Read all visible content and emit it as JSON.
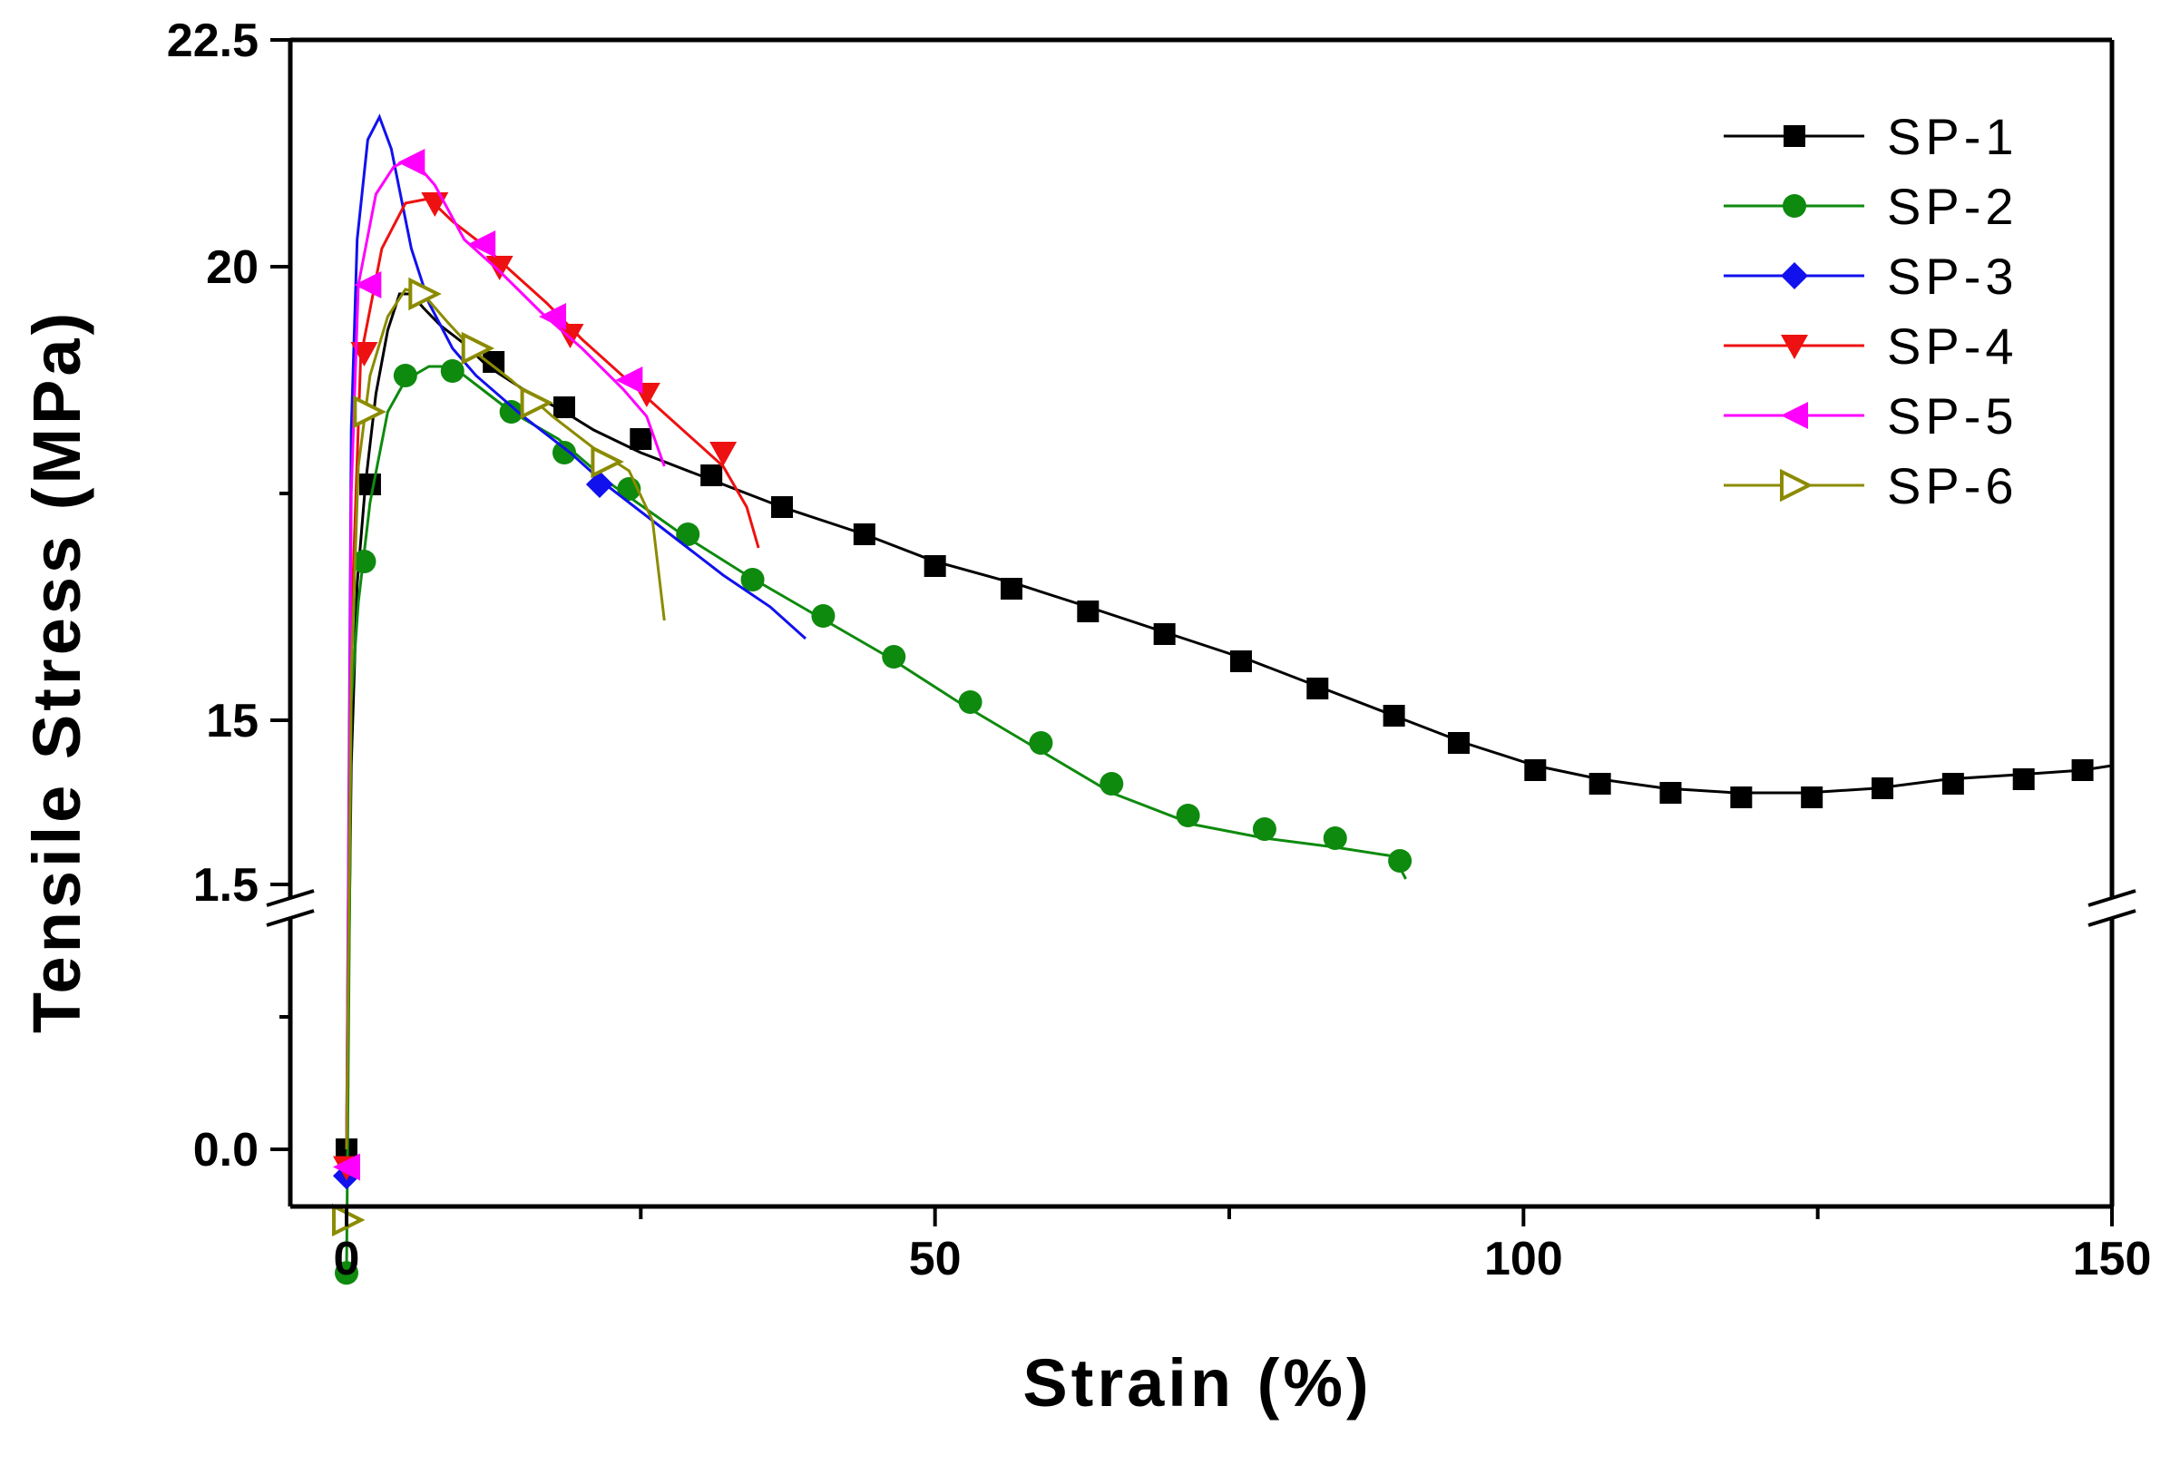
{
  "chart_data": {
    "type": "line",
    "xlabel": "Strain (%)",
    "ylabel": "Tensile Stress (MPa)",
    "xlim": [
      0,
      150
    ],
    "x_ticks": [
      "0",
      "50",
      "100",
      "150"
    ],
    "y_axis_broken": true,
    "y_lower_range": [
      -0.8,
      2.4
    ],
    "y_upper_range": [
      12.9,
      22.5
    ],
    "y_ticks": [
      "0.0",
      "1.5",
      "15",
      "20",
      "22.5"
    ],
    "legend_position": "top-right",
    "grid": false,
    "series": [
      {
        "name": "SP-1",
        "color": "#000000",
        "marker": "square",
        "line": [
          [
            0,
            0.0
          ],
          [
            0.4,
            14.5
          ],
          [
            0.9,
            16.5
          ],
          [
            1.6,
            17.6
          ],
          [
            2.5,
            18.6
          ],
          [
            3.5,
            19.3
          ],
          [
            4.5,
            19.7
          ],
          [
            5.5,
            19.7
          ],
          [
            6.5,
            19.55
          ],
          [
            8,
            19.35
          ],
          [
            10,
            19.15
          ],
          [
            12,
            18.9
          ],
          [
            15,
            18.65
          ],
          [
            18.5,
            18.4
          ],
          [
            21,
            18.2
          ],
          [
            25,
            17.95
          ],
          [
            31,
            17.65
          ],
          [
            37,
            17.35
          ],
          [
            44,
            17.05
          ],
          [
            50,
            16.75
          ],
          [
            57,
            16.5
          ],
          [
            63,
            16.25
          ],
          [
            70,
            15.95
          ],
          [
            77,
            15.65
          ],
          [
            83,
            15.35
          ],
          [
            89,
            15.05
          ],
          [
            95,
            14.75
          ],
          [
            101,
            14.5
          ],
          [
            106.5,
            14.35
          ],
          [
            112,
            14.25
          ],
          [
            118,
            14.2
          ],
          [
            124,
            14.2
          ],
          [
            130,
            14.25
          ],
          [
            136,
            14.35
          ],
          [
            142,
            14.4
          ],
          [
            147.5,
            14.45
          ],
          [
            150,
            14.5
          ]
        ],
        "markers": [
          [
            0,
            0.0
          ],
          [
            2,
            17.6
          ],
          [
            12.5,
            18.95
          ],
          [
            18.5,
            18.45
          ],
          [
            25,
            18.1
          ],
          [
            31,
            17.7
          ],
          [
            37,
            17.35
          ],
          [
            44,
            17.05
          ],
          [
            50,
            16.7
          ],
          [
            56.5,
            16.45
          ],
          [
            63,
            16.2
          ],
          [
            69.5,
            15.95
          ],
          [
            76,
            15.65
          ],
          [
            82.5,
            15.35
          ],
          [
            89,
            15.05
          ],
          [
            94.5,
            14.75
          ],
          [
            101,
            14.45
          ],
          [
            106.5,
            14.3
          ],
          [
            112.5,
            14.2
          ],
          [
            118.5,
            14.15
          ],
          [
            124.5,
            14.15
          ],
          [
            130.5,
            14.25
          ],
          [
            136.5,
            14.3
          ],
          [
            142.5,
            14.35
          ],
          [
            147.5,
            14.45
          ]
        ]
      },
      {
        "name": "SP-2",
        "color": "#0e8a0e",
        "marker": "circle",
        "line": [
          [
            0,
            -0.7
          ],
          [
            0.4,
            15.2
          ],
          [
            1,
            16.3
          ],
          [
            2,
            17.4
          ],
          [
            3.5,
            18.4
          ],
          [
            5,
            18.75
          ],
          [
            7,
            18.9
          ],
          [
            9,
            18.9
          ],
          [
            11.5,
            18.65
          ],
          [
            14,
            18.4
          ],
          [
            18,
            18.1
          ],
          [
            22.5,
            17.6
          ],
          [
            28.5,
            17.05
          ],
          [
            34,
            16.6
          ],
          [
            40,
            16.15
          ],
          [
            46,
            15.7
          ],
          [
            52,
            15.2
          ],
          [
            58.5,
            14.7
          ],
          [
            65,
            14.2
          ],
          [
            72,
            13.85
          ],
          [
            78,
            13.7
          ],
          [
            84,
            13.6
          ],
          [
            89,
            13.5
          ],
          [
            90,
            13.25
          ]
        ],
        "markers": [
          [
            0,
            -0.7
          ],
          [
            1.5,
            16.75
          ],
          [
            5,
            18.8
          ],
          [
            9,
            18.85
          ],
          [
            14,
            18.4
          ],
          [
            18.5,
            17.95
          ],
          [
            24,
            17.55
          ],
          [
            29,
            17.05
          ],
          [
            34.5,
            16.55
          ],
          [
            40.5,
            16.15
          ],
          [
            46.5,
            15.7
          ],
          [
            53,
            15.2
          ],
          [
            59,
            14.75
          ],
          [
            65,
            14.3
          ],
          [
            71.5,
            13.95
          ],
          [
            78,
            13.8
          ],
          [
            84,
            13.7
          ],
          [
            89.5,
            13.45
          ]
        ]
      },
      {
        "name": "SP-3",
        "color": "#1111ee",
        "marker": "diamond",
        "line": [
          [
            0,
            0.0
          ],
          [
            0.4,
            18.2
          ],
          [
            0.9,
            20.3
          ],
          [
            1.8,
            21.4
          ],
          [
            2.8,
            21.65
          ],
          [
            3.8,
            21.3
          ],
          [
            5.5,
            20.2
          ],
          [
            7,
            19.6
          ],
          [
            9,
            19.1
          ],
          [
            11,
            18.8
          ],
          [
            15,
            18.35
          ],
          [
            19,
            17.95
          ],
          [
            22,
            17.6
          ],
          [
            27,
            17.1
          ],
          [
            32,
            16.6
          ],
          [
            36,
            16.25
          ],
          [
            39,
            15.9
          ]
        ],
        "markers": [
          [
            0,
            -0.15
          ],
          [
            21.5,
            17.6
          ]
        ]
      },
      {
        "name": "SP-4",
        "color": "#ee1111",
        "marker": "triangle-down",
        "line": [
          [
            0,
            0.0
          ],
          [
            0.4,
            16.0
          ],
          [
            1.2,
            19.0
          ],
          [
            3,
            20.2
          ],
          [
            5,
            20.7
          ],
          [
            7,
            20.75
          ],
          [
            9,
            20.5
          ],
          [
            11.5,
            20.25
          ],
          [
            14,
            19.95
          ],
          [
            17,
            19.6
          ],
          [
            20,
            19.2
          ],
          [
            23,
            18.85
          ],
          [
            26,
            18.5
          ],
          [
            29,
            18.15
          ],
          [
            32,
            17.8
          ],
          [
            34,
            17.35
          ],
          [
            35,
            16.9
          ]
        ],
        "markers": [
          [
            0,
            -0.1
          ],
          [
            1.5,
            19.05
          ],
          [
            7.5,
            20.7
          ],
          [
            13,
            20.0
          ],
          [
            19,
            19.25
          ],
          [
            25.5,
            18.6
          ],
          [
            32,
            17.95
          ]
        ]
      },
      {
        "name": "SP-5",
        "color": "#ff00ff",
        "marker": "triangle-left",
        "line": [
          [
            0,
            0.0
          ],
          [
            0.4,
            17.5
          ],
          [
            1,
            19.8
          ],
          [
            2.5,
            20.8
          ],
          [
            4,
            21.1
          ],
          [
            5.5,
            21.2
          ],
          [
            7.5,
            20.9
          ],
          [
            10,
            20.3
          ],
          [
            13,
            19.95
          ],
          [
            16.5,
            19.5
          ],
          [
            20,
            19.1
          ],
          [
            23.5,
            18.65
          ],
          [
            25.5,
            18.35
          ],
          [
            27,
            17.8
          ]
        ],
        "markers": [
          [
            0,
            -0.1
          ],
          [
            1.8,
            19.8
          ],
          [
            5.5,
            21.15
          ],
          [
            11.5,
            20.25
          ],
          [
            17.5,
            19.45
          ],
          [
            24,
            18.75
          ]
        ]
      },
      {
        "name": "SP-6",
        "color": "#8b8b00",
        "marker": "triangle-right-open",
        "line": [
          [
            0,
            0.0
          ],
          [
            0.4,
            15.5
          ],
          [
            1,
            17.8
          ],
          [
            2,
            18.8
          ],
          [
            3.5,
            19.45
          ],
          [
            5,
            19.75
          ],
          [
            6.5,
            19.7
          ],
          [
            8.5,
            19.4
          ],
          [
            11,
            19.05
          ],
          [
            14,
            18.75
          ],
          [
            17.5,
            18.35
          ],
          [
            21,
            18.0
          ],
          [
            24,
            17.75
          ],
          [
            26,
            17.2
          ],
          [
            27,
            16.1
          ]
        ],
        "markers": [
          [
            0,
            -0.4
          ],
          [
            1.8,
            18.4
          ],
          [
            6.5,
            19.7
          ],
          [
            11,
            19.1
          ],
          [
            16,
            18.5
          ],
          [
            22,
            17.85
          ]
        ]
      }
    ]
  }
}
